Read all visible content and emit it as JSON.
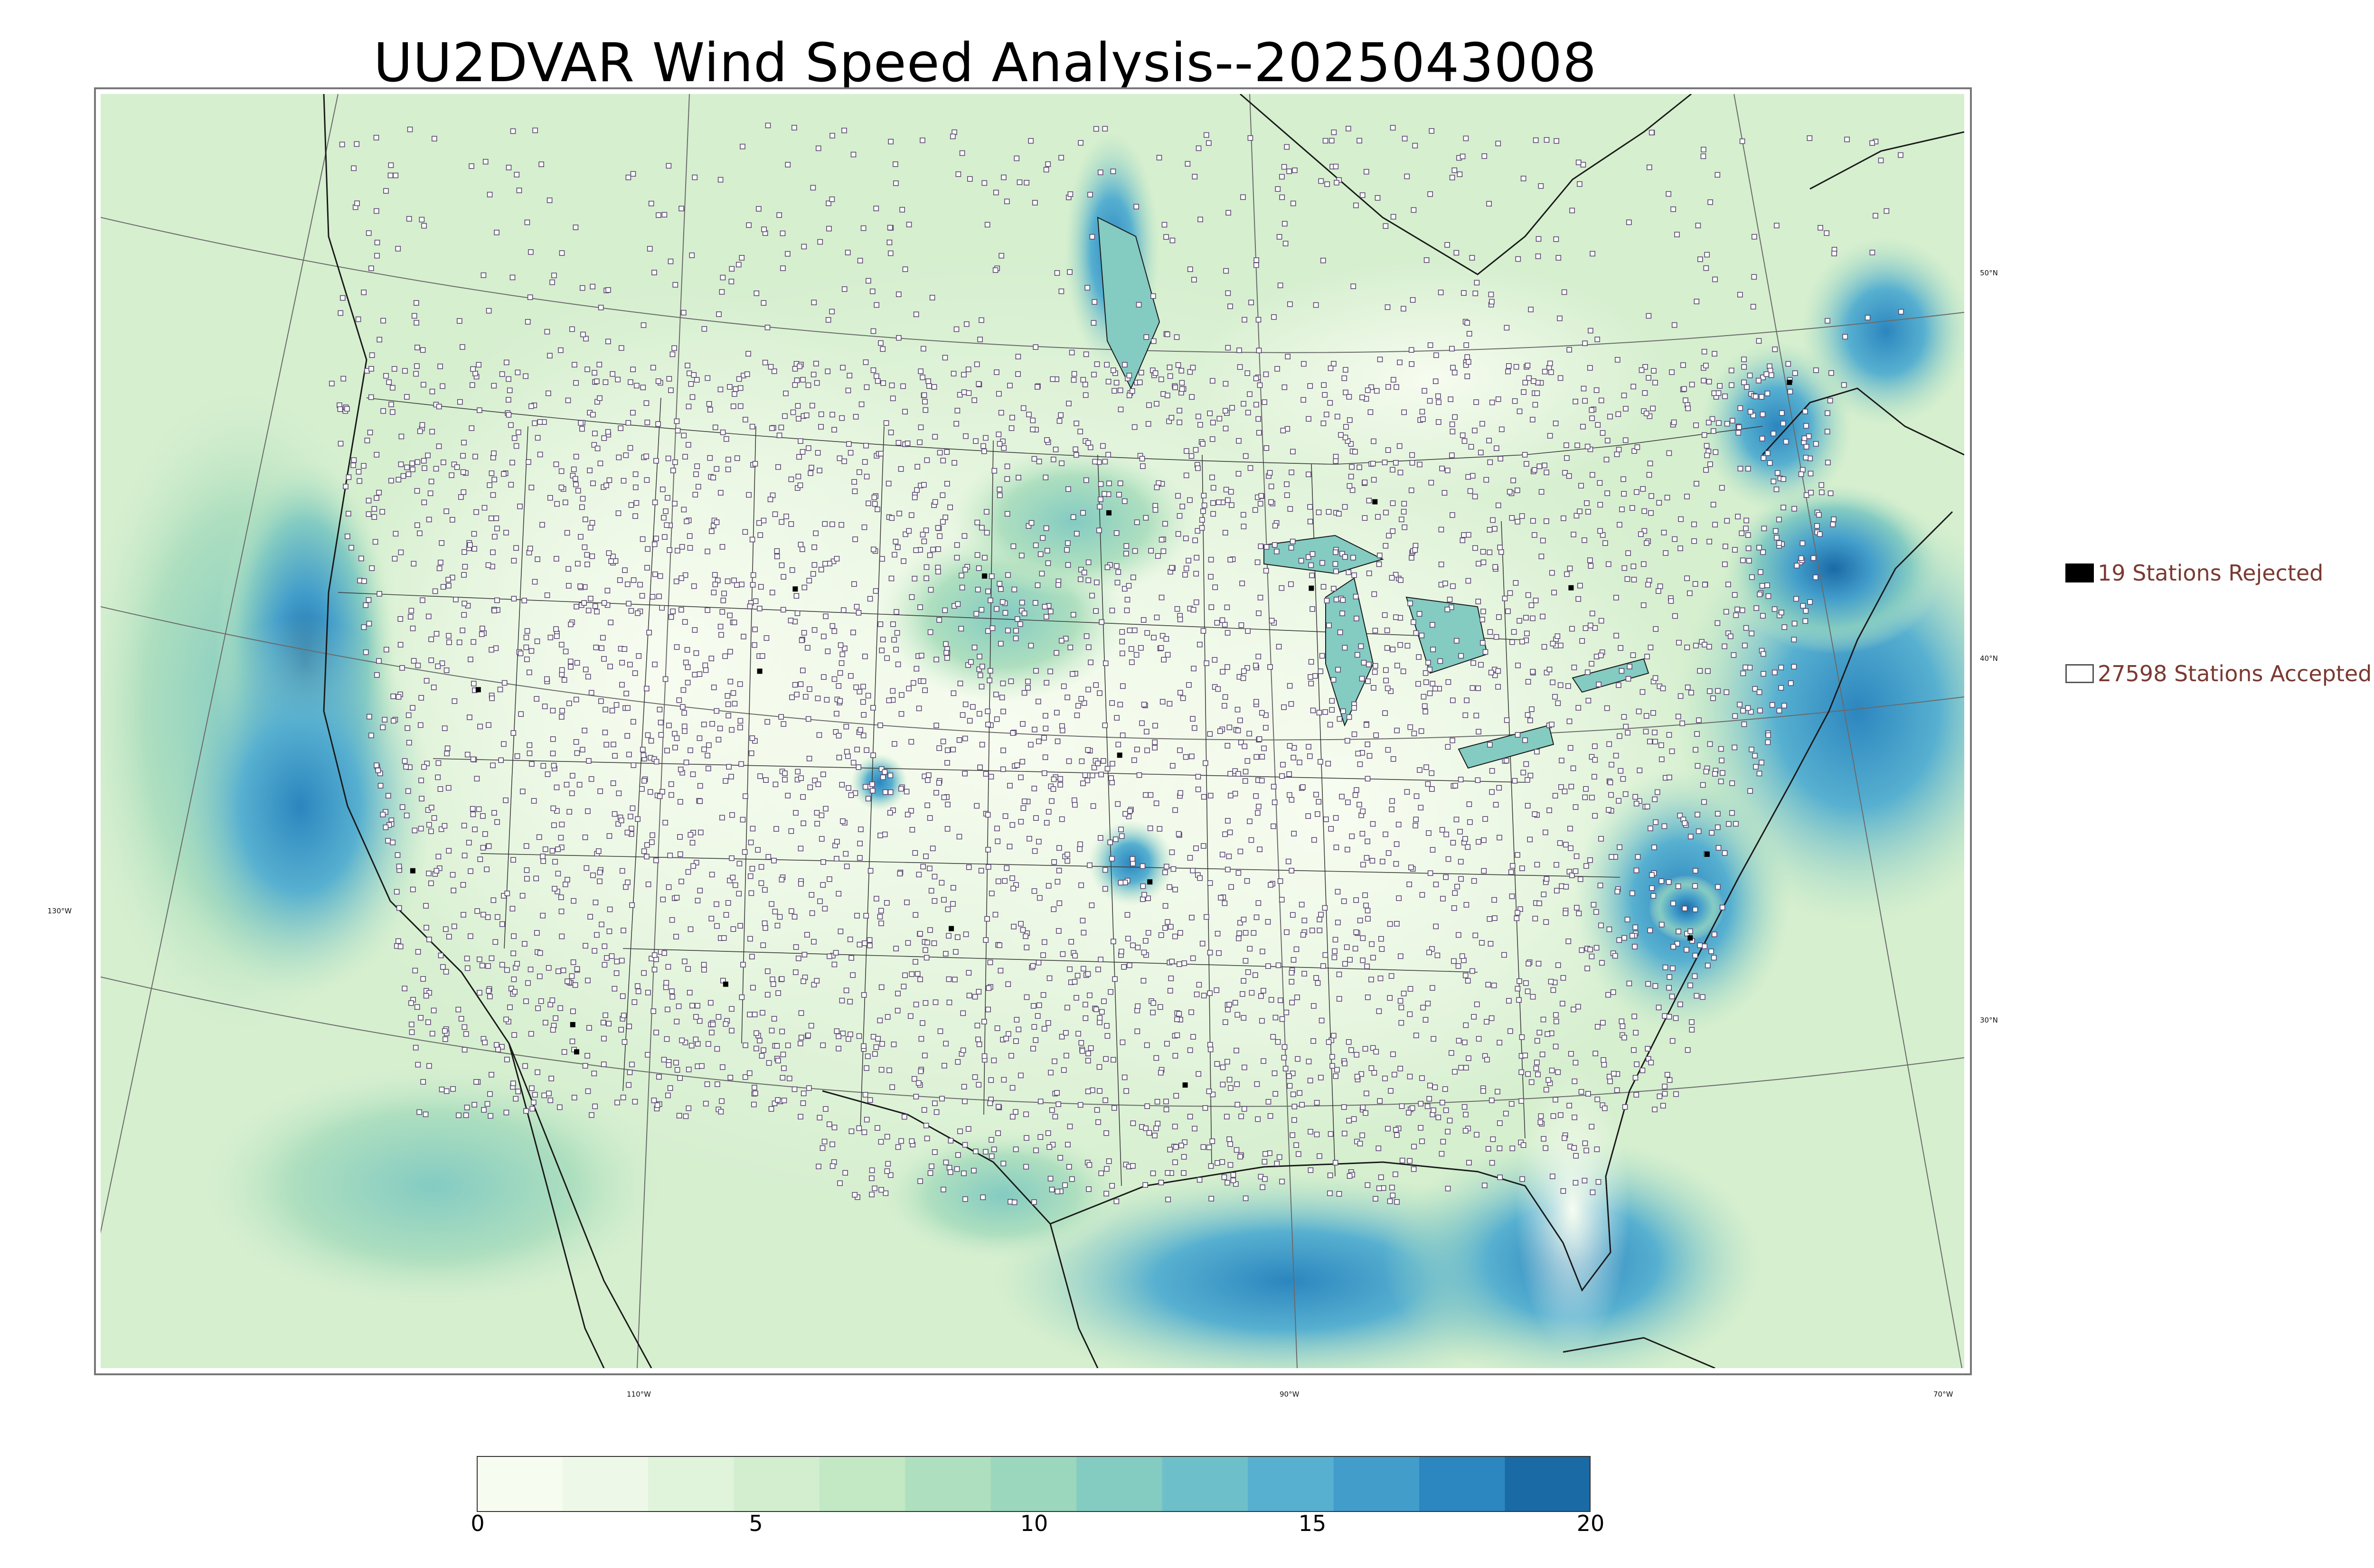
{
  "title": "UU2DVAR Wind Speed Analysis--2025043008",
  "graticule": {
    "lon_labels": [
      "130°W",
      "110°W",
      "90°W",
      "70°W"
    ],
    "lat_labels": [
      "50°N",
      "40°N",
      "30°N"
    ]
  },
  "legend": {
    "rejected": {
      "label": "19 Stations Rejected",
      "color": "#000000",
      "icon": "filled-square-icon"
    },
    "accepted": {
      "label": "27598 Stations Accepted",
      "color": "#ffffff",
      "icon": "hollow-square-icon"
    }
  },
  "colorbar": {
    "ticks": [
      "0",
      "5",
      "10",
      "15",
      "20"
    ],
    "colors": [
      "#f7fcf0",
      "#eef8e8",
      "#e0f3db",
      "#d2eecf",
      "#c2e8c4",
      "#aedfbf",
      "#9ad7bd",
      "#84cbc2",
      "#6dc0c9",
      "#57b0d0",
      "#429dcb",
      "#2c86bf",
      "#1a6aa6"
    ]
  },
  "colors": {
    "coast": "#1a1a1a",
    "border": "#3a3a3a",
    "graticule": "#6a6a6a",
    "station_edge": "#5a4a70"
  }
}
